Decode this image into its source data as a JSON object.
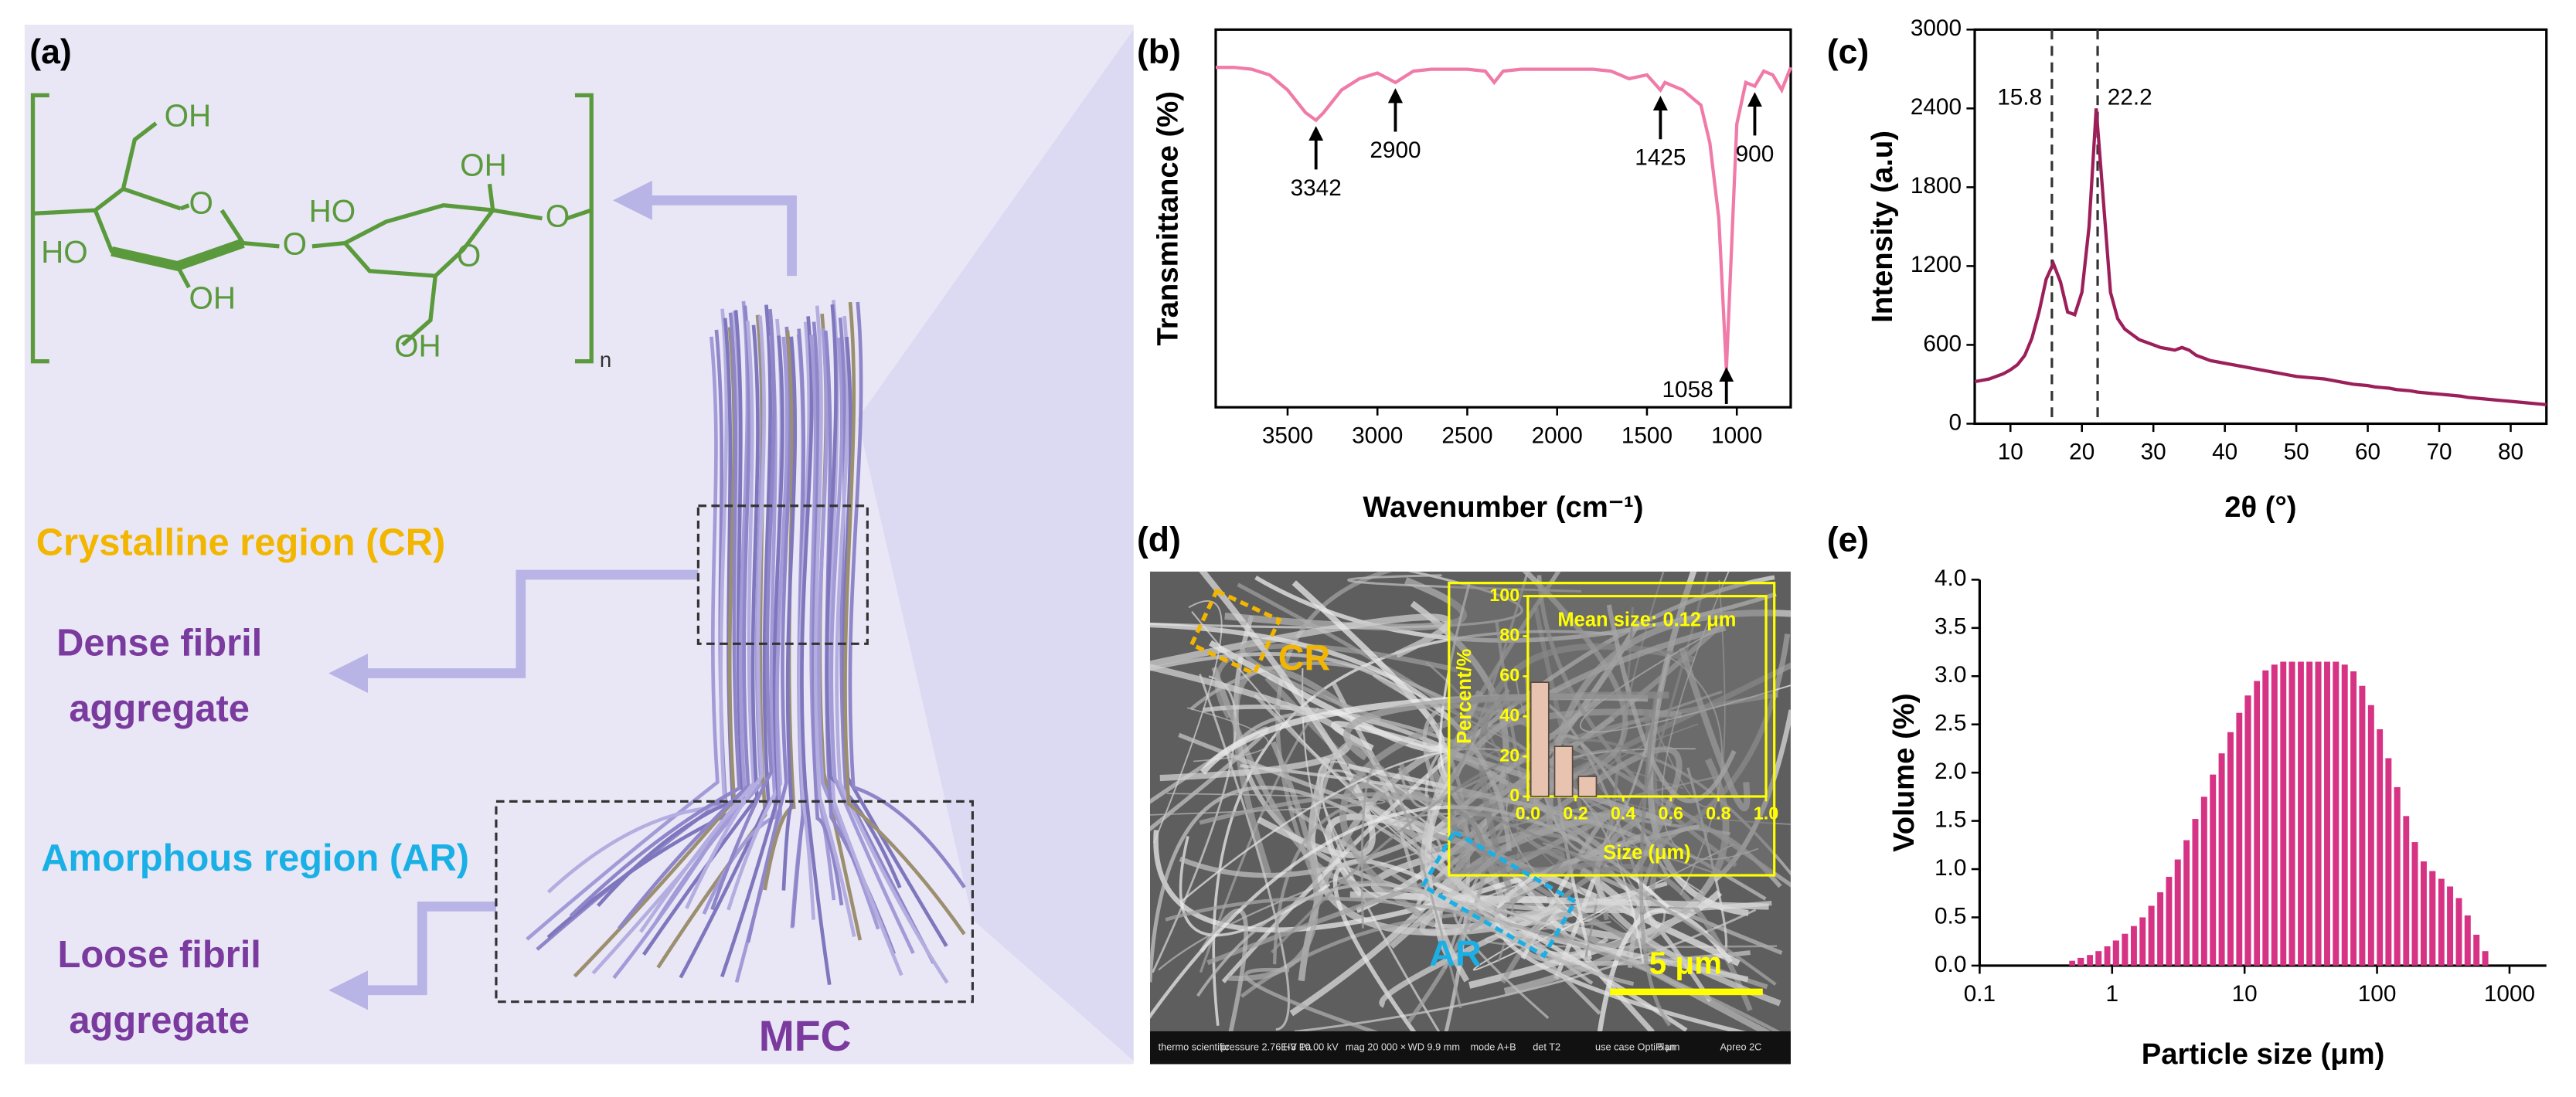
{
  "panel_labels": [
    "(a)",
    "(b)",
    "(c)",
    "(d)",
    "(e)"
  ],
  "diagram": {
    "structure_labels": [
      "OH",
      "HO",
      "OH",
      "O",
      "O",
      "HO",
      "OH",
      "O",
      "OH",
      "O",
      "n"
    ],
    "crystalline": "Crystalline region (CR)",
    "dense": [
      "Dense fibril",
      "aggregate"
    ],
    "amorphous": "Amorphous region (AR)",
    "loose": [
      "Loose fibril",
      "aggregate"
    ],
    "mfc": "MFC"
  },
  "sem": {
    "cr": "CR",
    "ar": "AR",
    "scale_bar": "5 μm",
    "footer": [
      "thermo scientific",
      "pressure 2.76E-3 Pa",
      "HV 10.00 kV",
      "mag 20 000 ×",
      "WD 9.9 mm",
      "mode A+B",
      "det T2",
      "use case OptiPlan",
      "5 μm",
      "Apreo 2C"
    ]
  },
  "chart_data": [
    {
      "type": "line",
      "xlabel": "Wavenumber (cm⁻¹)",
      "ylabel": "Transmittance (%)",
      "frame": true,
      "x": [
        3900,
        3800,
        3700,
        3600,
        3500,
        3400,
        3342,
        3300,
        3200,
        3100,
        3000,
        2900,
        2800,
        2700,
        2600,
        2500,
        2400,
        2350,
        2300,
        2200,
        2100,
        2000,
        1900,
        1800,
        1700,
        1600,
        1500,
        1425,
        1400,
        1300,
        1200,
        1150,
        1100,
        1058,
        1000,
        950,
        900,
        850,
        800,
        750,
        700
      ],
      "series": [
        {
          "color": "#f07aa8",
          "values": [
            90,
            90,
            89.5,
            88,
            84,
            78,
            76,
            78,
            84,
            87,
            88.5,
            86,
            89,
            89.5,
            89.5,
            89.5,
            89,
            86,
            89,
            89.5,
            89.5,
            89.5,
            89.5,
            89.5,
            89,
            87,
            88,
            84,
            86,
            84,
            80,
            70,
            50,
            10,
            75,
            86,
            85,
            89,
            88,
            84,
            90
          ]
        }
      ],
      "xlim": [
        3900,
        700
      ],
      "ylim": [
        0,
        100
      ],
      "xticks": [
        3500,
        3000,
        2500,
        2000,
        1500,
        1000
      ],
      "annotations": [
        3342,
        2900,
        1425,
        1058,
        900
      ]
    },
    {
      "type": "line",
      "xlabel": "2θ (°)",
      "ylabel": "Intensity (a.u)",
      "frame": true,
      "x": [
        5,
        6,
        7,
        8,
        9,
        10,
        11,
        12,
        13,
        14,
        15,
        16,
        17,
        18,
        19,
        20,
        21,
        22,
        23,
        24,
        25,
        26,
        27,
        28,
        29,
        30,
        31,
        32,
        33,
        34,
        35,
        36,
        37,
        38,
        39,
        40,
        41,
        42,
        43,
        44,
        45,
        46,
        47,
        48,
        49,
        50,
        51,
        52,
        53,
        54,
        55,
        56,
        57,
        58,
        59,
        60,
        61,
        62,
        63,
        64,
        65,
        66,
        67,
        68,
        69,
        70,
        71,
        72,
        73,
        74,
        75,
        76,
        77,
        78,
        79,
        80,
        81,
        82,
        83,
        84,
        85
      ],
      "series": [
        {
          "color": "#9c1f5a",
          "values": [
            320,
            330,
            340,
            360,
            380,
            410,
            450,
            520,
            650,
            850,
            1100,
            1220,
            1080,
            850,
            830,
            1000,
            1500,
            2400,
            1700,
            1000,
            800,
            720,
            680,
            640,
            620,
            600,
            580,
            570,
            560,
            580,
            560,
            520,
            500,
            480,
            470,
            460,
            450,
            440,
            430,
            420,
            410,
            400,
            390,
            380,
            370,
            360,
            355,
            350,
            345,
            340,
            330,
            320,
            310,
            300,
            295,
            290,
            280,
            275,
            270,
            260,
            255,
            250,
            240,
            235,
            230,
            225,
            220,
            215,
            210,
            200,
            195,
            190,
            185,
            180,
            175,
            170,
            165,
            160,
            155,
            150,
            145
          ]
        }
      ],
      "xlim": [
        5,
        85
      ],
      "ylim": [
        0,
        3000
      ],
      "xticks": [
        10,
        20,
        30,
        40,
        50,
        60,
        70,
        80
      ],
      "yticks": [
        0,
        600,
        1200,
        1800,
        2400,
        3000
      ],
      "ref_lines": [
        15.8,
        22.2
      ]
    },
    {
      "type": "bar",
      "xlabel": "Particle size (μm)",
      "ylabel": "Volume (%)",
      "frame": false,
      "log_x": true,
      "color": "#d63384",
      "x": [
        0.5,
        0.58,
        0.68,
        0.79,
        0.92,
        1.07,
        1.25,
        1.46,
        1.7,
        1.98,
        2.31,
        2.69,
        3.13,
        3.65,
        4.25,
        4.95,
        5.77,
        6.72,
        7.83,
        9.12,
        10.6,
        12.4,
        14.4,
        16.8,
        19.6,
        22.8,
        26.6,
        30.9,
        36,
        42,
        48.9,
        57,
        66.4,
        77.3,
        90.1,
        105,
        122,
        142,
        166,
        193,
        225,
        262,
        306,
        356,
        415,
        483,
        563,
        656
      ],
      "values": [
        0.05,
        0.08,
        0.11,
        0.15,
        0.2,
        0.26,
        0.33,
        0.41,
        0.5,
        0.62,
        0.76,
        0.92,
        1.1,
        1.3,
        1.52,
        1.75,
        1.98,
        2.2,
        2.42,
        2.62,
        2.8,
        2.95,
        3.06,
        3.12,
        3.15,
        3.15,
        3.15,
        3.15,
        3.15,
        3.15,
        3.15,
        3.12,
        3.05,
        2.9,
        2.7,
        2.45,
        2.15,
        1.85,
        1.55,
        1.28,
        1.08,
        0.98,
        0.9,
        0.82,
        0.7,
        0.52,
        0.32,
        0.15
      ],
      "xlim": [
        0.1,
        1900
      ],
      "ylim": [
        0,
        4
      ],
      "xticks": [
        0.1,
        1,
        10,
        100,
        1000
      ],
      "yticks": [
        {
          "value": 0,
          "label": "0.0"
        },
        0.5,
        {
          "value": 1,
          "label": "1.0"
        },
        1.5,
        {
          "value": 2,
          "label": "2.0"
        },
        2.5,
        {
          "value": 3,
          "label": "3.0"
        },
        3.5,
        {
          "value": 4,
          "label": "4.0"
        }
      ]
    },
    {
      "type": "bar",
      "title": "Mean size: 0.12 μm",
      "xlabel": "Size (μm)",
      "ylabel": "Percent/%",
      "frame": true,
      "color": "#e8c4b0",
      "x": [
        0.05,
        0.15,
        0.25
      ],
      "values": [
        57,
        25,
        10
      ],
      "xlim": [
        0,
        1
      ],
      "ylim": [
        0,
        100
      ],
      "xticks": [
        {
          "value": 0,
          "label": "0.0"
        },
        0.2,
        0.4,
        0.6,
        0.8,
        {
          "value": 1,
          "label": "1.0"
        }
      ],
      "yticks": [
        0,
        20,
        40,
        60,
        80,
        100
      ]
    }
  ]
}
